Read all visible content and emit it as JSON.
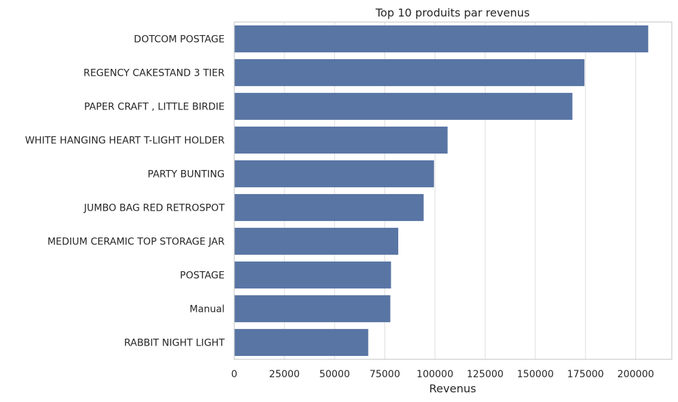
{
  "chart_data": {
    "type": "bar",
    "orientation": "horizontal",
    "title": "Top 10 produits par revenus",
    "xlabel": "Revenus",
    "ylabel": "",
    "categories": [
      "DOTCOM POSTAGE",
      "REGENCY CAKESTAND 3 TIER",
      "PAPER CRAFT , LITTLE BIRDIE",
      "WHITE HANGING HEART T-LIGHT HOLDER",
      "PARTY BUNTING",
      "JUMBO BAG RED RETROSPOT",
      "MEDIUM CERAMIC TOP STORAGE JAR",
      "POSTAGE",
      "Manual",
      "RABBIT NIGHT LIGHT"
    ],
    "values": [
      206248,
      174485,
      168470,
      106293,
      99504,
      94340,
      81701,
      78101,
      77753,
      66757
    ],
    "xlim": [
      0,
      218000
    ],
    "xticks": [
      0,
      25000,
      50000,
      75000,
      100000,
      125000,
      150000,
      175000,
      200000
    ],
    "xtick_labels": [
      "0",
      "25000",
      "50000",
      "75000",
      "100000",
      "125000",
      "150000",
      "175000",
      "200000"
    ],
    "grid": "vertical",
    "bar_color": "#5975a4",
    "grid_color": "#dddddd",
    "frame_color": "#cccccc"
  }
}
